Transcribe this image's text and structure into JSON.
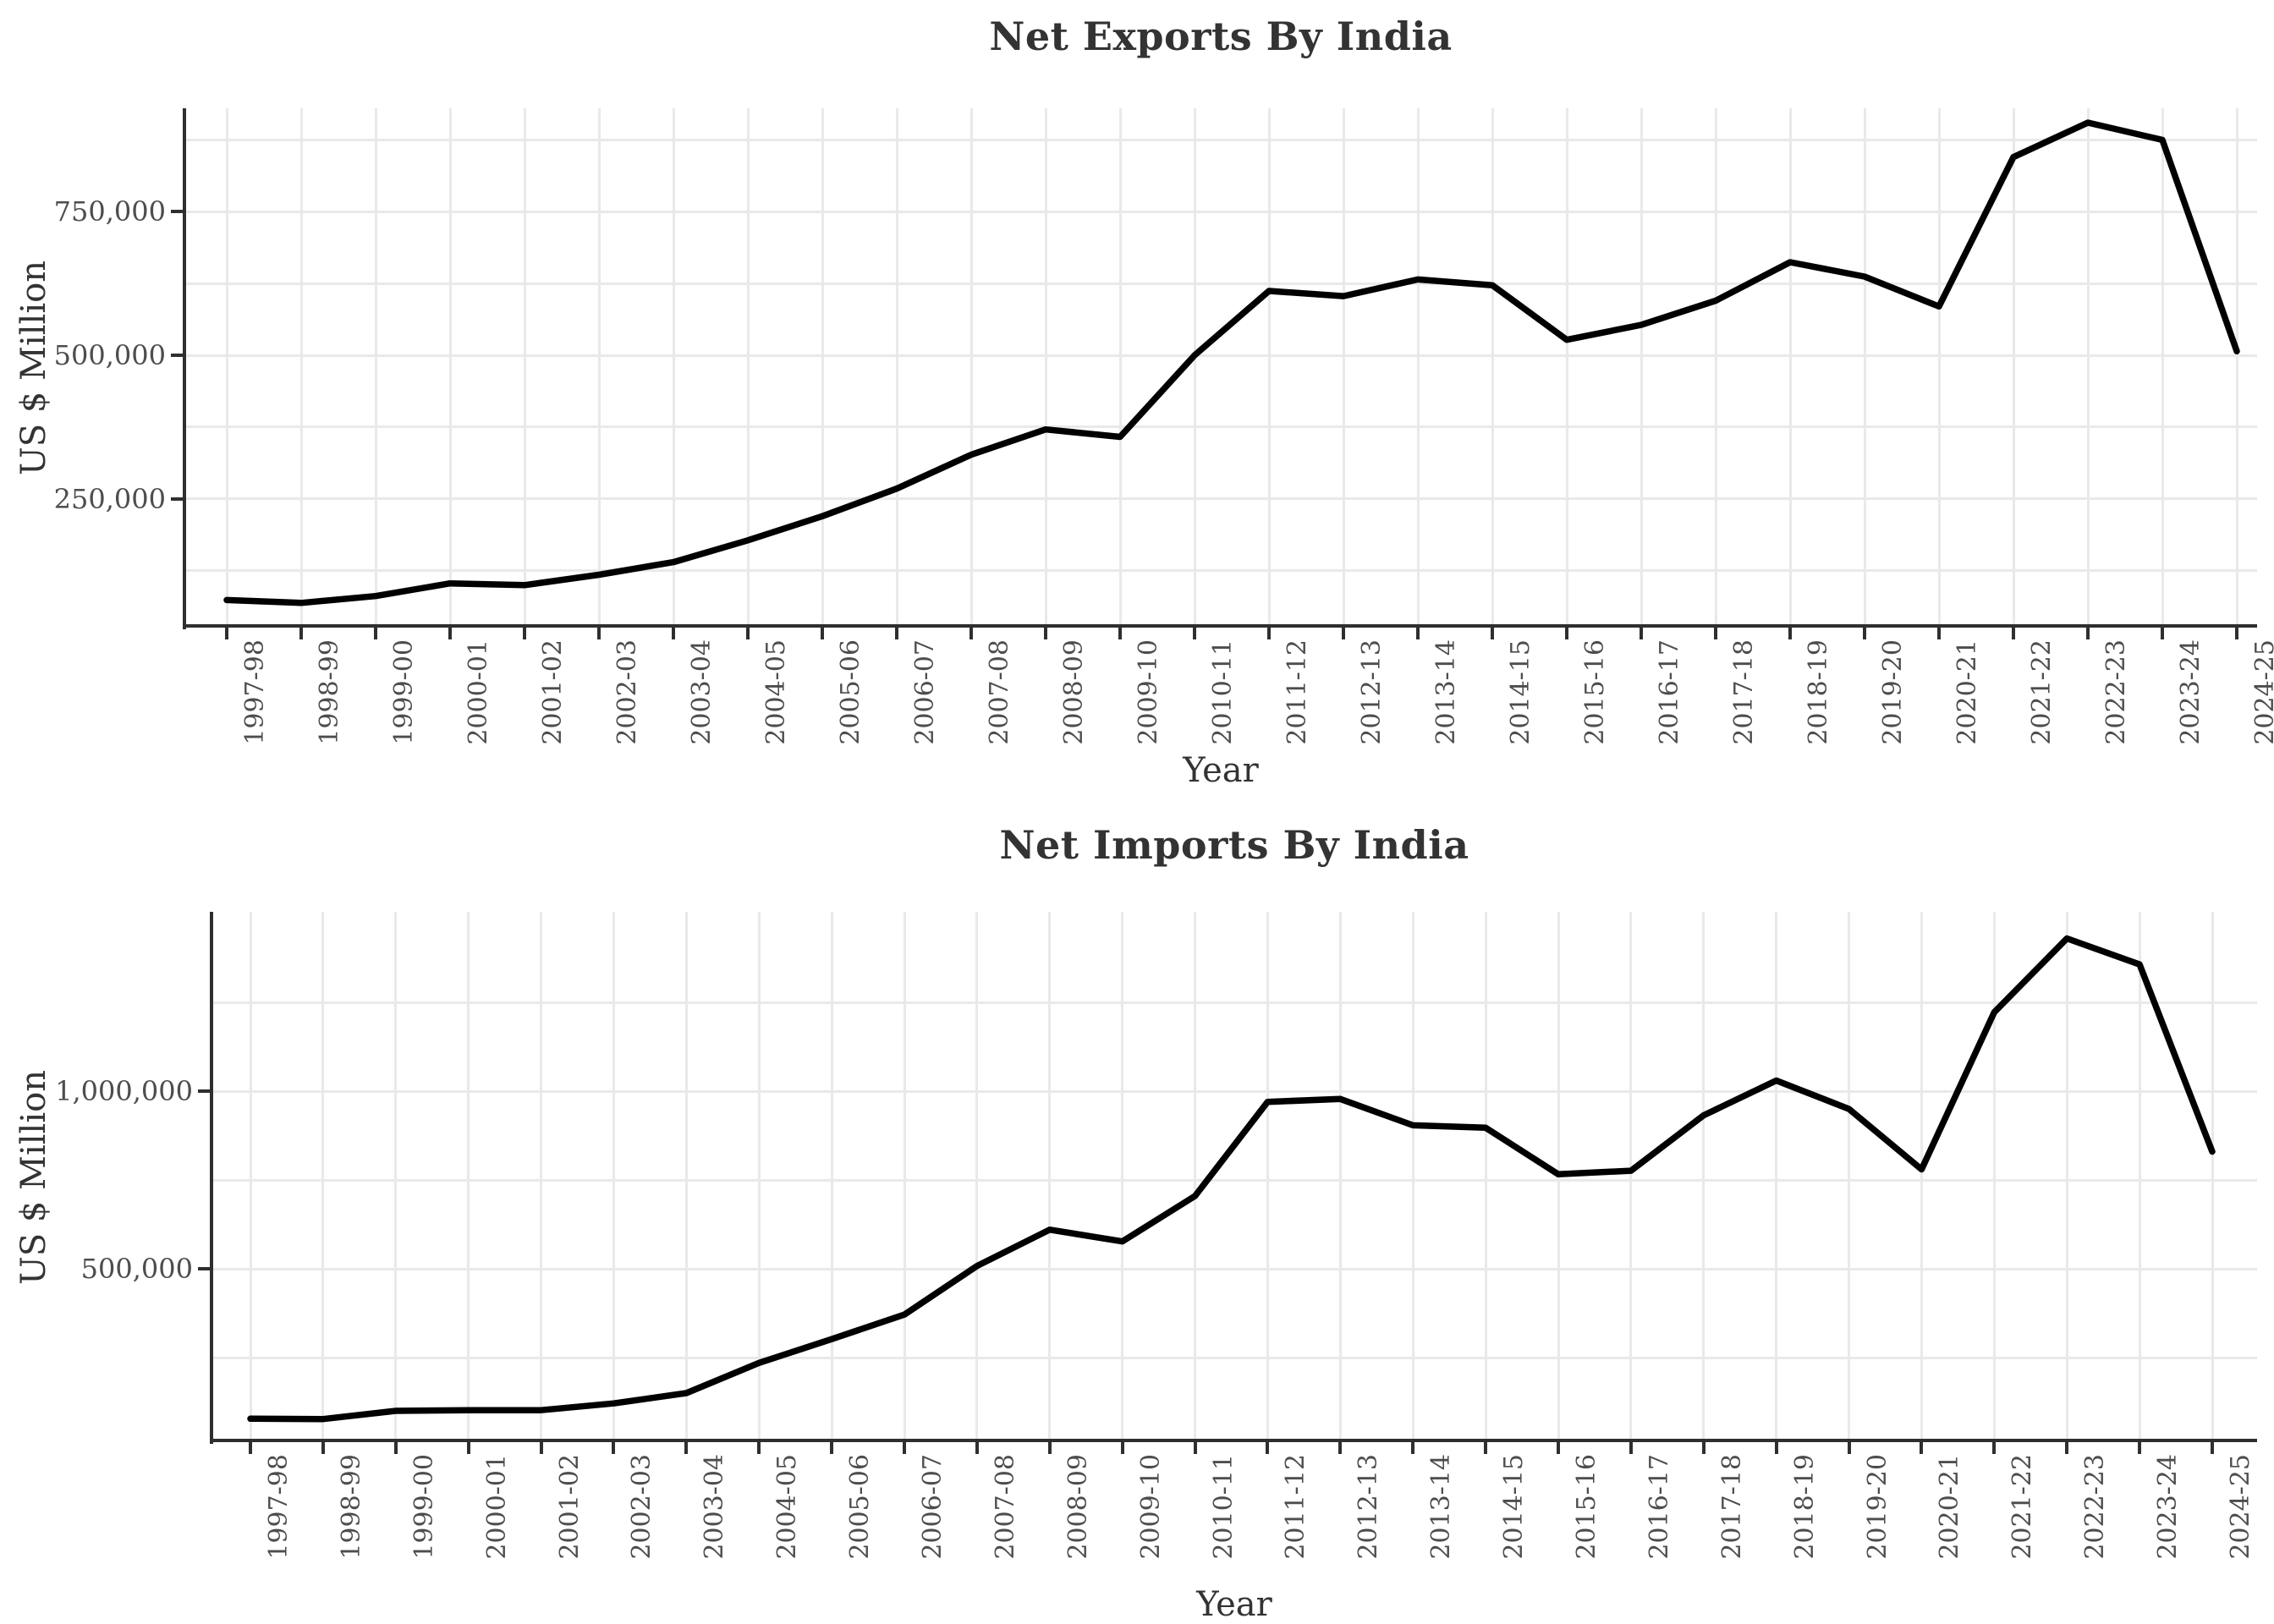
{
  "figure_title": "Net Exports and Net Imports of India, line charts",
  "colors": {
    "background": "#ffffff",
    "line": "#000000",
    "grid": "#e9e9e9",
    "axis": "#2f2f2f",
    "tick_text": "#4d4d4d",
    "title_text": "#333333"
  },
  "charts": [
    {
      "title": "Net Exports By India",
      "y_axis_title": "US $ Million",
      "x_axis_title": "Year",
      "y_tick_labels": [
        "250,000",
        "500,000",
        "750,000"
      ],
      "y_tick_values": [
        250000,
        500000,
        750000
      ]
    },
    {
      "title": "Net Imports By India",
      "y_axis_title": "US $ Million",
      "x_axis_title": "Year",
      "y_tick_labels": [
        "500,000",
        "1,000,000"
      ],
      "y_tick_values": [
        500000,
        1000000
      ]
    }
  ],
  "chart_data": [
    {
      "type": "line",
      "title": "Net Exports By India",
      "xlabel": "Year",
      "ylabel": "US $ Million",
      "legend": "none",
      "grid": "on",
      "x_tick_rotation": 90,
      "categories": [
        "1997-98",
        "1998-99",
        "1999-00",
        "2000-01",
        "2001-02",
        "2002-03",
        "2003-04",
        "2004-05",
        "2005-06",
        "2006-07",
        "2007-08",
        "2008-09",
        "2009-10",
        "2010-11",
        "2011-12",
        "2012-13",
        "2013-14",
        "2014-15",
        "2015-16",
        "2016-17",
        "2017-18",
        "2018-19",
        "2019-20",
        "2020-21",
        "2021-22",
        "2022-23",
        "2023-24",
        "2024-25"
      ],
      "values": [
        74000,
        69000,
        81000,
        103000,
        100000,
        118000,
        140000,
        178000,
        220000,
        268000,
        327000,
        371000,
        358000,
        500000,
        612000,
        603000,
        632000,
        622000,
        527000,
        553000,
        595000,
        662000,
        637000,
        585000,
        845000,
        905000,
        875000,
        507000
      ],
      "ylim": [
        29000,
        930000
      ],
      "y_major_ticks": [
        250000,
        500000,
        750000
      ],
      "y_gridlines": [
        125000,
        250000,
        375000,
        500000,
        625000,
        750000,
        875000
      ]
    },
    {
      "type": "line",
      "title": "Net Imports By India",
      "xlabel": "Year",
      "ylabel": "US $ Million",
      "legend": "none",
      "grid": "on",
      "x_tick_rotation": 90,
      "categories": [
        "1997-98",
        "1998-99",
        "1999-00",
        "2000-01",
        "2001-02",
        "2002-03",
        "2003-04",
        "2004-05",
        "2005-06",
        "2006-07",
        "2007-08",
        "2008-09",
        "2009-10",
        "2010-11",
        "2011-12",
        "2012-13",
        "2013-14",
        "2014-15",
        "2015-16",
        "2016-17",
        "2017-18",
        "2018-19",
        "2019-20",
        "2020-21",
        "2021-22",
        "2022-23",
        "2023-24",
        "2024-25"
      ],
      "values": [
        78000,
        77000,
        100000,
        102000,
        102000,
        121000,
        150000,
        235000,
        302000,
        371000,
        508000,
        610000,
        577000,
        705000,
        970000,
        978000,
        904000,
        897000,
        766000,
        776000,
        932000,
        1030000,
        950000,
        780000,
        1222000,
        1430000,
        1357000,
        830000
      ],
      "ylim": [
        16700,
        1505000
      ],
      "y_major_ticks": [
        500000,
        1000000
      ],
      "y_gridlines": [
        250000,
        500000,
        750000,
        1000000,
        1250000
      ]
    }
  ]
}
